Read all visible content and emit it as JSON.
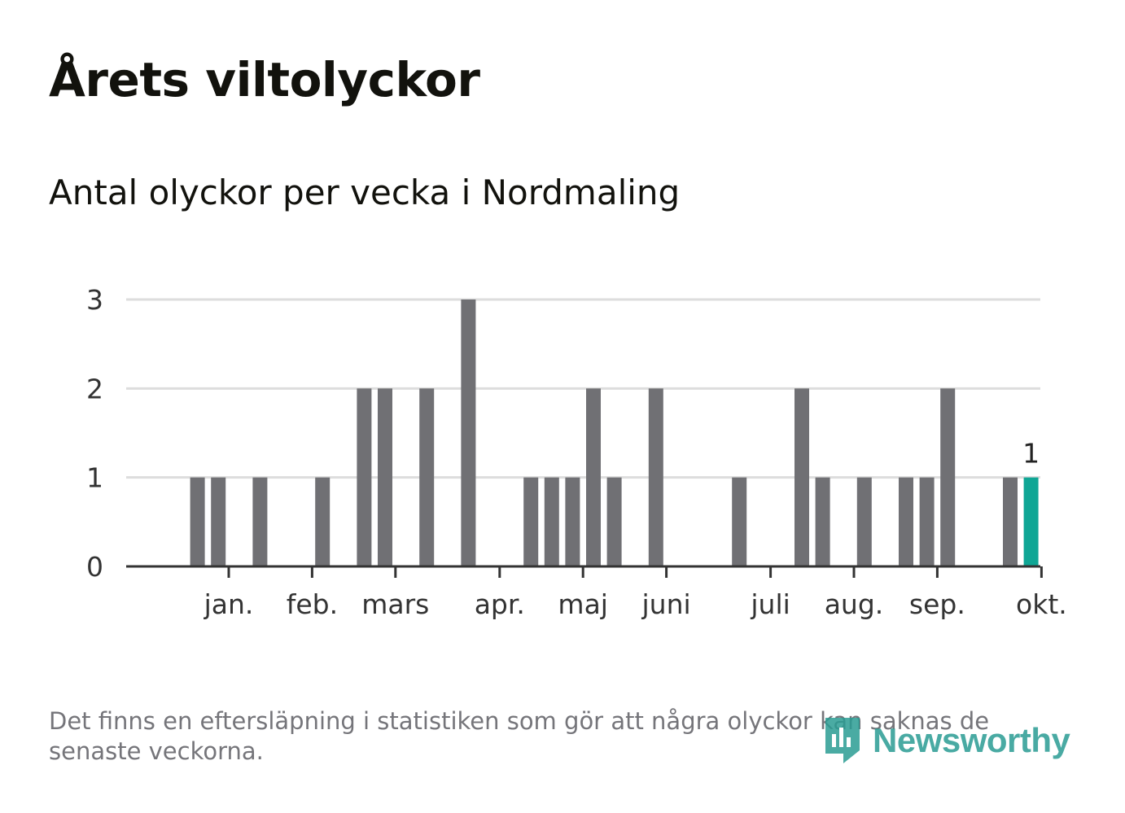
{
  "header": {
    "title": "Årets viltolyckor",
    "subtitle": "Antal olyckor per vecka i Nordmaling"
  },
  "footer": {
    "note": "Det finns en eftersläpning i statistiken som gör att några olyckor kan saknas de senaste veckorna.",
    "brand": "Newsworthy"
  },
  "colors": {
    "bar": "#707074",
    "highlight": "#0fa695",
    "grid": "#dddddd",
    "axis": "#333333",
    "text": "#333333",
    "brand": "#2a9c93"
  },
  "chart_data": {
    "type": "bar",
    "title": "Antal olyckor per vecka i Nordmaling",
    "xlabel": "",
    "ylabel": "",
    "ylim": [
      0,
      3
    ],
    "yticks": [
      0,
      1,
      2,
      3
    ],
    "grid": true,
    "weeks": [
      1,
      2,
      3,
      4,
      5,
      6,
      7,
      8,
      9,
      10,
      11,
      12,
      13,
      14,
      15,
      16,
      17,
      18,
      19,
      20,
      21,
      22,
      23,
      24,
      25,
      26,
      27,
      28,
      29,
      30,
      31,
      32,
      33,
      34,
      35,
      36,
      37,
      38,
      39,
      40,
      41,
      42,
      43
    ],
    "values": [
      0,
      1,
      1,
      0,
      1,
      0,
      0,
      1,
      0,
      2,
      2,
      0,
      2,
      0,
      3,
      0,
      0,
      1,
      1,
      1,
      2,
      1,
      0,
      2,
      0,
      0,
      0,
      1,
      0,
      0,
      2,
      1,
      0,
      1,
      0,
      1,
      1,
      2,
      0,
      0,
      1,
      1,
      0
    ],
    "highlight_week": 42,
    "highlight_label": "1",
    "month_ticks": [
      {
        "label": "jan.",
        "week": 3.5
      },
      {
        "label": "feb.",
        "week": 7.5
      },
      {
        "label": "mars",
        "week": 11.5
      },
      {
        "label": "apr.",
        "week": 16.5
      },
      {
        "label": "maj",
        "week": 20.5
      },
      {
        "label": "juni",
        "week": 24.5
      },
      {
        "label": "juli",
        "week": 29.5
      },
      {
        "label": "aug.",
        "week": 33.5
      },
      {
        "label": "sep.",
        "week": 37.5
      },
      {
        "label": "okt.",
        "week": 42.5
      }
    ]
  }
}
